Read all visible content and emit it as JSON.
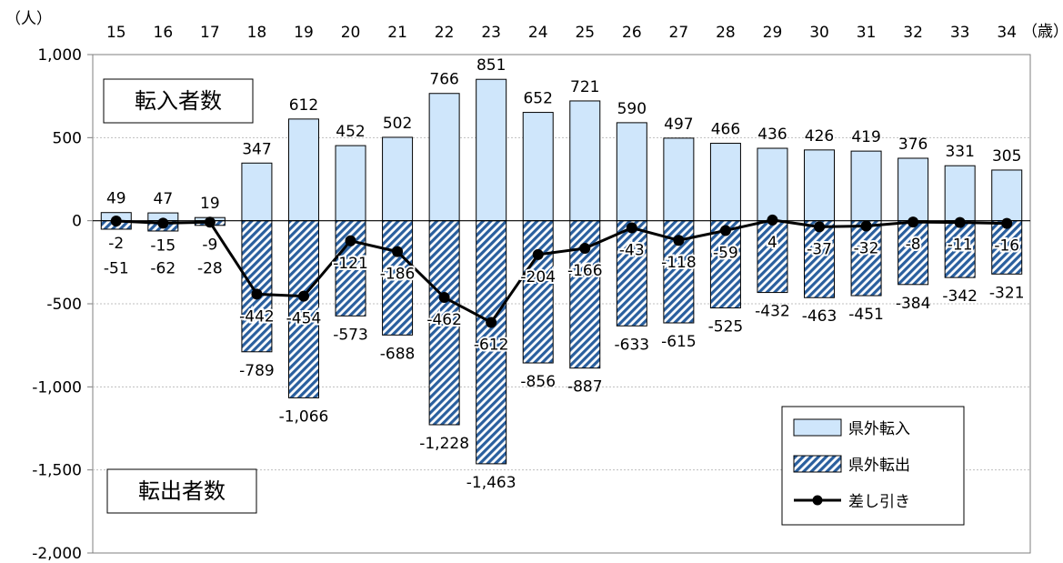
{
  "chart_data": {
    "type": "bar",
    "y_unit": "（人）",
    "x_unit": "（歳）",
    "categories": [
      "15",
      "16",
      "17",
      "18",
      "19",
      "20",
      "21",
      "22",
      "23",
      "24",
      "25",
      "26",
      "27",
      "28",
      "29",
      "30",
      "31",
      "32",
      "33",
      "34"
    ],
    "ylim": [
      -2000,
      1000
    ],
    "yticks": [
      1000,
      500,
      0,
      -500,
      -1000,
      -1500,
      -2000
    ],
    "ytick_labels": [
      "1,000",
      "500",
      "0",
      "-500",
      "-1,000",
      "-1,500",
      "-2,000"
    ],
    "series": [
      {
        "name": "県外転入",
        "type": "bar",
        "fill": "#cfe6fb",
        "values": [
          49,
          47,
          19,
          347,
          612,
          452,
          502,
          766,
          851,
          652,
          721,
          590,
          497,
          466,
          436,
          426,
          419,
          376,
          331,
          305
        ],
        "labels": [
          "49",
          "47",
          "19",
          "347",
          "612",
          "452",
          "502",
          "766",
          "851",
          "652",
          "721",
          "590",
          "497",
          "466",
          "436",
          "426",
          "419",
          "376",
          "331",
          "305"
        ]
      },
      {
        "name": "県外転出",
        "type": "bar",
        "fill": "hatch-blue",
        "values": [
          -51,
          -62,
          -28,
          -789,
          -1066,
          -573,
          -688,
          -1228,
          -1463,
          -856,
          -887,
          -633,
          -615,
          -525,
          -432,
          -463,
          -451,
          -384,
          -342,
          -321
        ],
        "labels": [
          "-51",
          "-62",
          "-28",
          "-789",
          "-1,066",
          "-573",
          "-688",
          "-1,228",
          "-1,463",
          "-856",
          "-887",
          "-633",
          "-615",
          "-525",
          "-432",
          "-463",
          "-451",
          "-384",
          "-342",
          "-321"
        ]
      },
      {
        "name": "差し引き",
        "type": "line",
        "color": "#000000",
        "values": [
          -2,
          -15,
          -9,
          -442,
          -454,
          -121,
          -186,
          -462,
          -612,
          -204,
          -166,
          -43,
          -118,
          -59,
          4,
          -37,
          -32,
          -8,
          -11,
          -16
        ],
        "labels": [
          "-2",
          "-15",
          "-9",
          "-442",
          "-454",
          "-121",
          "-186",
          "-462",
          "-612",
          "-204",
          "-166",
          "-43",
          "-118",
          "-59",
          "4",
          "-37",
          "-32",
          "-8",
          "-11",
          "-16"
        ]
      }
    ],
    "annotations": {
      "in_box": "転入者数",
      "out_box": "転出者数"
    },
    "legend_position": "bottom-right",
    "grid": true
  }
}
